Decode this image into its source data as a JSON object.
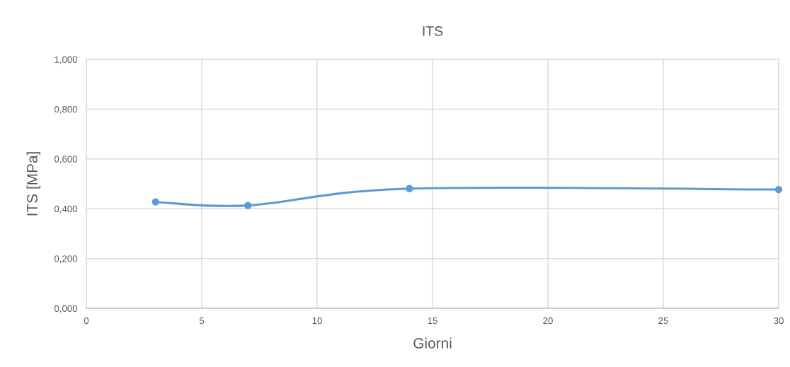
{
  "chart_data": {
    "type": "line",
    "title": "ITS",
    "xlabel": "Giorni",
    "ylabel": "ITS [MPa]",
    "x": [
      3,
      7,
      14,
      30
    ],
    "series": [
      {
        "color": "#5b9bd5",
        "values": [
          0.427,
          0.413,
          0.481,
          0.477
        ]
      }
    ],
    "xlim": [
      0,
      30
    ],
    "xticks": [
      0,
      5,
      10,
      15,
      20,
      25,
      30
    ],
    "ylim": [
      0,
      1
    ],
    "yticks": [
      {
        "value": 0,
        "label": "0,000"
      },
      {
        "value": 0.2,
        "label": "0,200"
      },
      {
        "value": 0.4,
        "label": "0,400"
      },
      {
        "value": 0.6,
        "label": "0,600"
      },
      {
        "value": 0.8,
        "label": "0,800"
      },
      {
        "value": 1,
        "label": "1,000"
      }
    ],
    "grid": true,
    "marker": "circle",
    "line_style": "solid"
  }
}
